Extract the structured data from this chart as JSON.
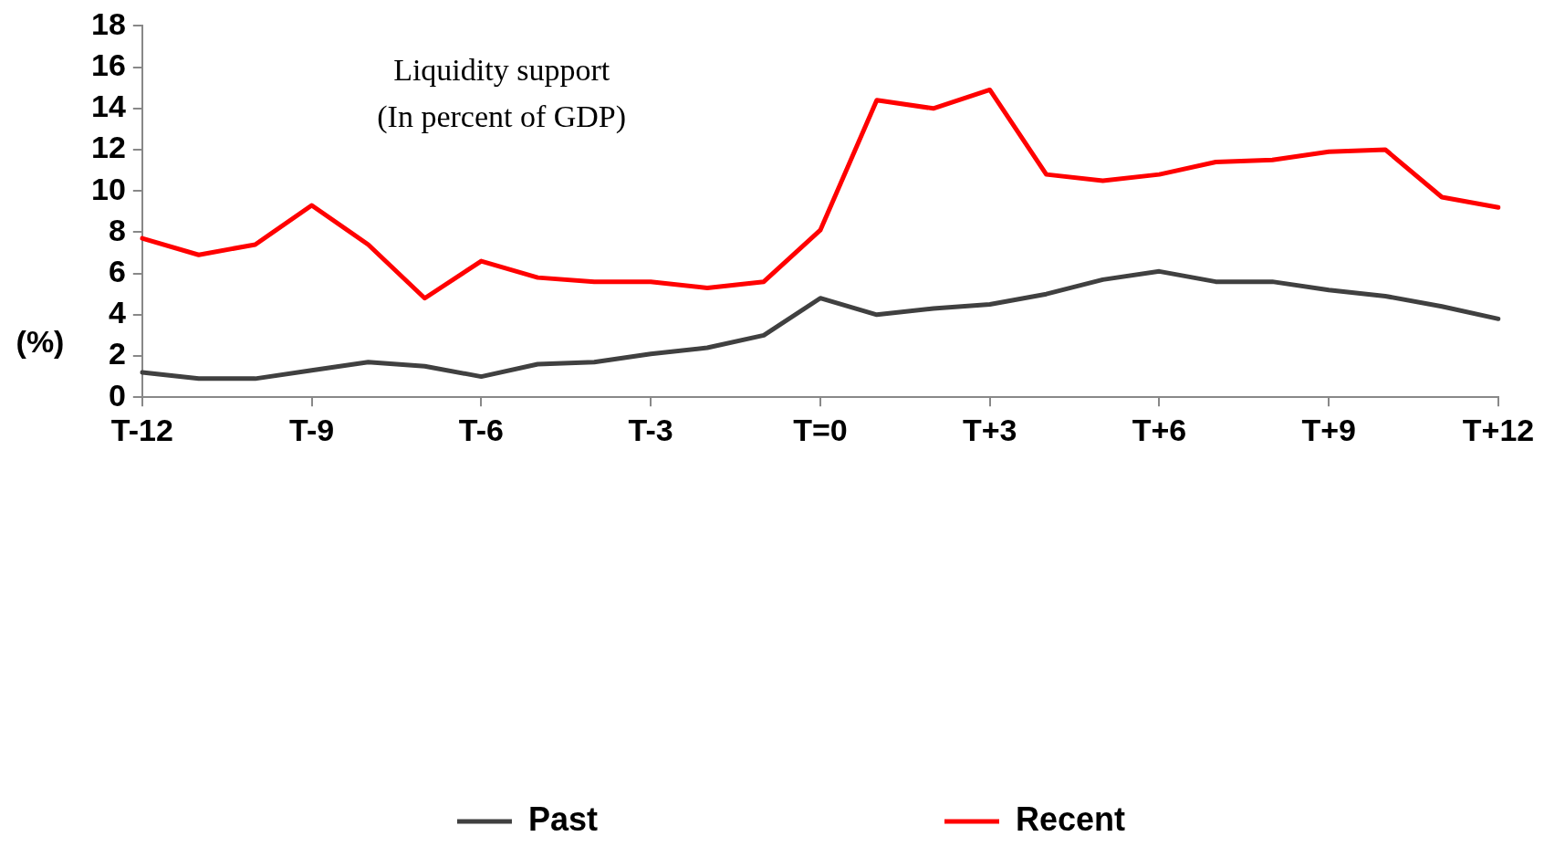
{
  "chart_data": {
    "type": "line",
    "title": "Liquidity support",
    "subtitle": "(In percent of GDP)",
    "ylabel": "(%)",
    "categories": [
      "T-12",
      null,
      null,
      "T-9",
      null,
      null,
      "T-6",
      null,
      null,
      "T-3",
      null,
      null,
      "T=0",
      null,
      null,
      "T+3",
      null,
      null,
      "T+6",
      null,
      null,
      "T+9",
      null,
      null,
      "T+12"
    ],
    "series": [
      {
        "name": "Past",
        "color": "#404040",
        "values": [
          1.2,
          0.9,
          0.9,
          1.3,
          1.7,
          1.5,
          1.0,
          1.6,
          1.7,
          2.1,
          2.4,
          3.0,
          4.8,
          4.0,
          4.3,
          4.5,
          5.0,
          5.7,
          6.1,
          5.6,
          5.6,
          5.2,
          4.9,
          4.4,
          3.8
        ]
      },
      {
        "name": "Recent",
        "color": "#ff0000",
        "values": [
          7.7,
          6.9,
          7.4,
          9.3,
          7.4,
          4.8,
          6.6,
          5.8,
          5.6,
          5.6,
          5.3,
          5.6,
          8.1,
          14.4,
          14.0,
          14.9,
          10.8,
          10.5,
          10.8,
          11.4,
          11.5,
          11.9,
          12.0,
          9.7,
          9.2
        ]
      }
    ],
    "ylim": [
      0,
      18
    ],
    "yticks": [
      0,
      2,
      4,
      6,
      8,
      10,
      12,
      14,
      16,
      18
    ],
    "grid": false,
    "legend": "bottom",
    "marker": "none",
    "line_style": "solid"
  }
}
